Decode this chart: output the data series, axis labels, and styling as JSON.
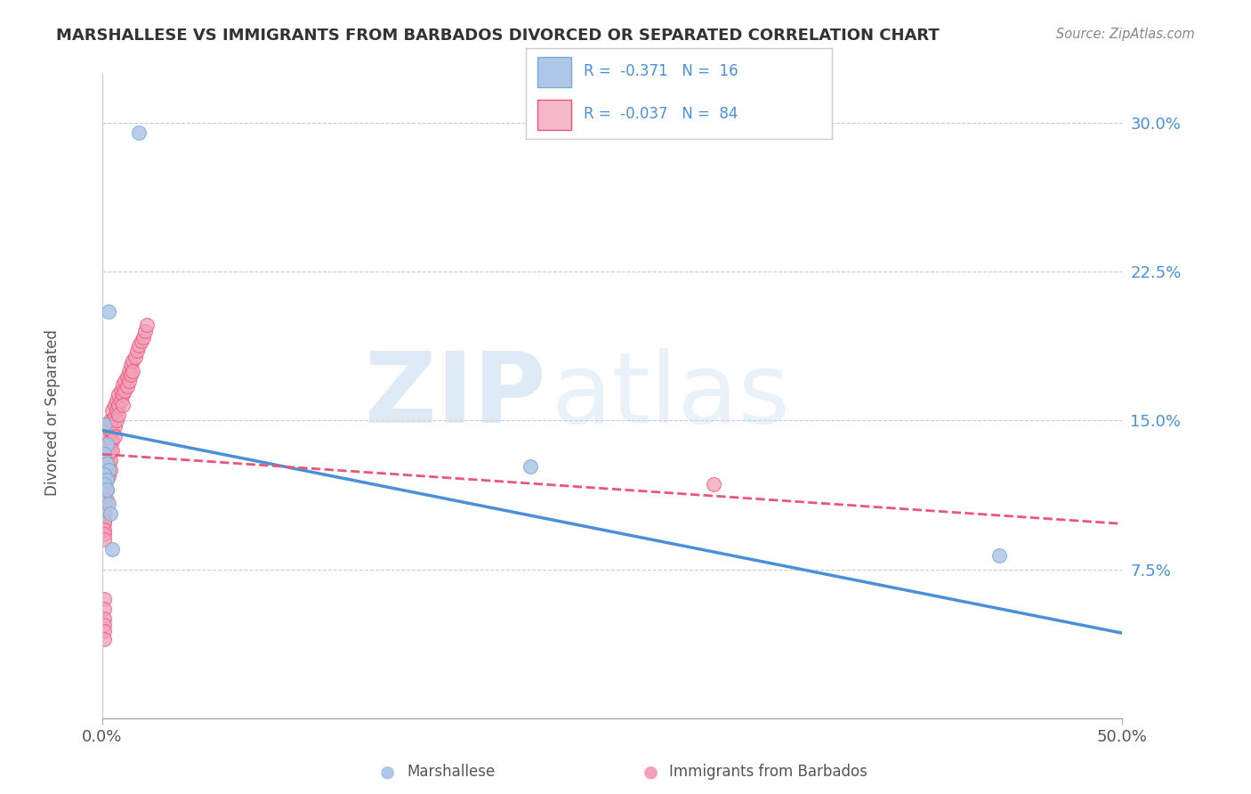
{
  "title": "MARSHALLESE VS IMMIGRANTS FROM BARBADOS DIVORCED OR SEPARATED CORRELATION CHART",
  "source": "Source: ZipAtlas.com",
  "ylabel": "Divorced or Separated",
  "xlim": [
    0.0,
    0.5
  ],
  "ylim": [
    0.0,
    0.325
  ],
  "line1_color": "#4a90d9",
  "line2_color": "#e8567a",
  "scatter1_color": "#aec6e8",
  "scatter1_edge": "#7aaed0",
  "scatter2_color": "#f4a0b8",
  "scatter2_edge": "#e8567a",
  "legend_color1": "#aec6e8",
  "legend_color2": "#f4b8c8",
  "legend_edge1": "#7aaed0",
  "legend_edge2": "#e8567a",
  "background_color": "#ffffff",
  "grid_color": "#cccccc",
  "ytick_color": "#4a90d9",
  "xtick_color": "#555555",
  "marshallese_x": [
    0.018,
    0.003,
    0.001,
    0.002,
    0.001,
    0.002,
    0.003,
    0.001,
    0.002,
    0.001,
    0.002,
    0.003,
    0.004,
    0.005,
    0.21,
    0.44
  ],
  "marshallese_y": [
    0.295,
    0.205,
    0.148,
    0.138,
    0.133,
    0.128,
    0.125,
    0.123,
    0.12,
    0.118,
    0.115,
    0.108,
    0.103,
    0.085,
    0.127,
    0.082
  ],
  "barbados_x": [
    0.001,
    0.001,
    0.001,
    0.001,
    0.001,
    0.001,
    0.001,
    0.001,
    0.001,
    0.001,
    0.001,
    0.001,
    0.001,
    0.001,
    0.001,
    0.002,
    0.002,
    0.002,
    0.002,
    0.002,
    0.002,
    0.002,
    0.002,
    0.003,
    0.003,
    0.003,
    0.003,
    0.003,
    0.003,
    0.004,
    0.004,
    0.004,
    0.004,
    0.004,
    0.004,
    0.005,
    0.005,
    0.005,
    0.005,
    0.005,
    0.006,
    0.006,
    0.006,
    0.006,
    0.007,
    0.007,
    0.007,
    0.008,
    0.008,
    0.008,
    0.009,
    0.009,
    0.01,
    0.01,
    0.01,
    0.011,
    0.011,
    0.012,
    0.012,
    0.013,
    0.013,
    0.014,
    0.014,
    0.015,
    0.015,
    0.016,
    0.017,
    0.018,
    0.019,
    0.02,
    0.021,
    0.022,
    0.001,
    0.001,
    0.001,
    0.001,
    0.001,
    0.001,
    0.001,
    0.001,
    0.001,
    0.3,
    0.001,
    0.001,
    0.001,
    0.001
  ],
  "barbados_y": [
    0.145,
    0.14,
    0.138,
    0.135,
    0.132,
    0.13,
    0.128,
    0.125,
    0.123,
    0.12,
    0.118,
    0.116,
    0.113,
    0.11,
    0.108,
    0.145,
    0.14,
    0.135,
    0.13,
    0.125,
    0.12,
    0.115,
    0.11,
    0.148,
    0.143,
    0.138,
    0.133,
    0.128,
    0.122,
    0.15,
    0.145,
    0.14,
    0.135,
    0.13,
    0.125,
    0.155,
    0.15,
    0.145,
    0.14,
    0.135,
    0.158,
    0.152,
    0.147,
    0.142,
    0.16,
    0.155,
    0.15,
    0.163,
    0.158,
    0.153,
    0.165,
    0.16,
    0.168,
    0.163,
    0.158,
    0.17,
    0.165,
    0.172,
    0.167,
    0.175,
    0.17,
    0.178,
    0.173,
    0.18,
    0.175,
    0.182,
    0.185,
    0.188,
    0.19,
    0.192,
    0.195,
    0.198,
    0.105,
    0.103,
    0.1,
    0.098,
    0.095,
    0.093,
    0.09,
    0.06,
    0.055,
    0.118,
    0.05,
    0.047,
    0.044,
    0.04
  ],
  "marsh_line_x0": 0.0,
  "marsh_line_y0": 0.145,
  "marsh_line_x1": 0.5,
  "marsh_line_y1": 0.043,
  "barb_line_x0": 0.0,
  "barb_line_y0": 0.133,
  "barb_line_x1": 0.5,
  "barb_line_y1": 0.098
}
